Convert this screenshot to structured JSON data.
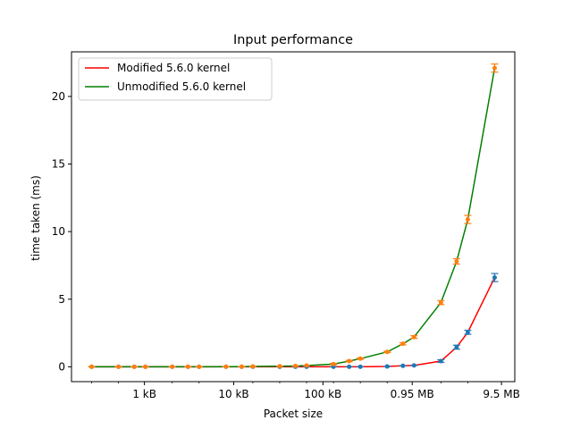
{
  "chart_data": {
    "type": "line",
    "title": "Input performance",
    "xlabel": "Packet size",
    "ylabel": "time taken (ms)",
    "x_scale": "log2",
    "x_unit": "bytes",
    "xticks": [
      {
        "value": 1000,
        "label": "1 kB"
      },
      {
        "value": 10000,
        "label": "10 kB"
      },
      {
        "value": 100000,
        "label": "100 kB"
      },
      {
        "value": 1000000,
        "label": "0.95 MB"
      },
      {
        "value": 10000000,
        "label": "9.5 MB"
      }
    ],
    "yticks": [
      0,
      5,
      10,
      15,
      20
    ],
    "ylim": [
      -1.1,
      23.3
    ],
    "legend_position": "upper left",
    "x": [
      256,
      512,
      768,
      1024,
      2048,
      3072,
      4096,
      8192,
      12288,
      16384,
      32768,
      49152,
      65536,
      131072,
      196608,
      262144,
      524288,
      786432,
      1048576,
      2097152,
      3145728,
      4194304,
      8388608
    ],
    "series": [
      {
        "name": "Modified 5.6.0 kernel",
        "color": "#ff0000",
        "marker_color": "#1f77b4",
        "values": [
          0,
          0,
          0,
          0,
          0,
          0,
          0,
          0,
          0,
          0,
          0,
          0,
          0,
          0,
          0,
          0,
          0.02,
          0.07,
          0.1,
          0.42,
          1.45,
          2.55,
          6.6
        ],
        "errors": [
          0,
          0,
          0,
          0,
          0,
          0,
          0,
          0,
          0,
          0,
          0,
          0,
          0,
          0,
          0,
          0,
          0,
          0,
          0,
          0.1,
          0.15,
          0.15,
          0.3
        ]
      },
      {
        "name": "Unmodified 5.6.0 kernel",
        "color": "#008000",
        "marker_color": "#ff7f0e",
        "values": [
          0,
          0,
          0,
          0,
          0,
          0,
          0,
          0.01,
          0.01,
          0.02,
          0.04,
          0.06,
          0.09,
          0.2,
          0.42,
          0.6,
          1.1,
          1.7,
          2.2,
          4.75,
          7.8,
          10.9,
          22.1
        ],
        "errors": [
          0,
          0,
          0,
          0,
          0,
          0,
          0,
          0,
          0,
          0,
          0,
          0,
          0,
          0.05,
          0.05,
          0.05,
          0.05,
          0.08,
          0.1,
          0.15,
          0.2,
          0.3,
          0.3
        ]
      }
    ]
  }
}
